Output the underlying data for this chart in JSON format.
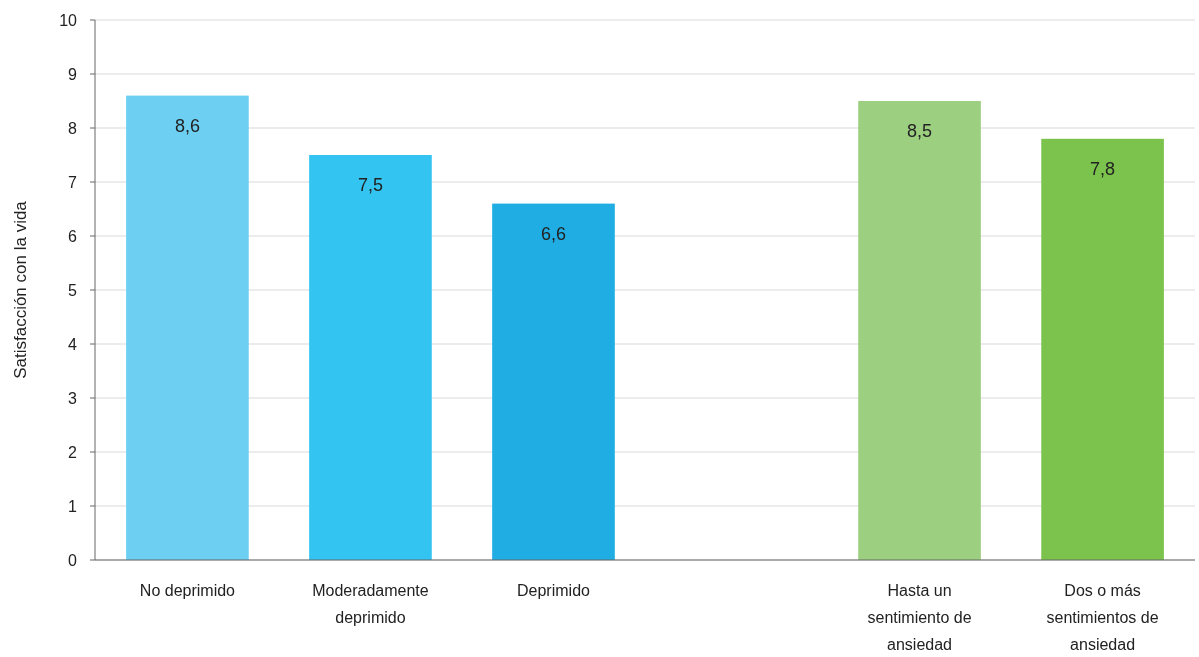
{
  "chart_data": {
    "type": "bar",
    "ylabel": "Satisfacción con la vida",
    "categories": [
      "No deprimido",
      "Moderadamente deprimido",
      "Deprimido",
      null,
      "Hasta un sentimiento de ansiedad",
      "Dos o más sentimientos de ansiedad"
    ],
    "values": [
      8.6,
      7.5,
      6.6,
      null,
      8.5,
      7.8
    ],
    "colors": [
      "#6dcff2",
      "#33c4f2",
      "#1fade3",
      null,
      "#9ccf80",
      "#7bc34d"
    ],
    "value_labels": [
      "8,6",
      "7,5",
      "6,6",
      null,
      "8,5",
      "7,8"
    ],
    "ylim": [
      0,
      10
    ],
    "yticks": [
      0,
      1,
      2,
      3,
      4,
      5,
      6,
      7,
      8,
      9,
      10
    ],
    "grid": "y"
  }
}
